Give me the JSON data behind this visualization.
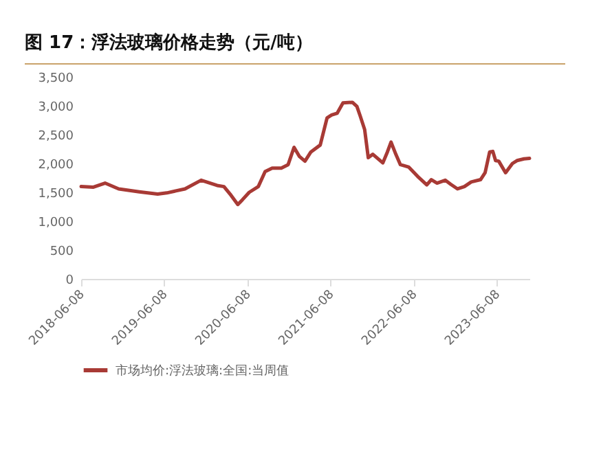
{
  "chart_data": {
    "type": "line",
    "title": "图 17：浮法玻璃价格走势（元/吨）",
    "x": [
      "2018-06-08",
      "2018-08-01",
      "2018-09-21",
      "2018-11-20",
      "2019-02-18",
      "2019-05-10",
      "2019-06-19",
      "2019-09-07",
      "2019-11-17",
      "2020-01-26",
      "2020-02-25",
      "2020-03-27",
      "2020-04-26",
      "2020-05-16",
      "2020-06-15",
      "2020-07-25",
      "2020-08-24",
      "2020-09-24",
      "2020-11-03",
      "2020-12-03",
      "2020-12-29",
      "2021-01-22",
      "2021-02-15",
      "2021-03-13",
      "2021-04-23",
      "2021-05-23",
      "2021-06-12",
      "2021-07-06",
      "2021-08-01",
      "2021-09-11",
      "2021-10-01",
      "2021-10-15",
      "2021-11-04",
      "2021-11-20",
      "2021-12-10",
      "2022-01-23",
      "2022-02-12",
      "2022-02-28",
      "2022-03-21",
      "2022-04-10",
      "2022-05-16",
      "2022-06-29",
      "2022-08-04",
      "2022-08-24",
      "2022-09-18",
      "2022-10-24",
      "2022-11-17",
      "2022-12-17",
      "2023-01-16",
      "2023-02-15",
      "2023-03-28",
      "2023-04-17",
      "2023-05-07",
      "2023-05-21",
      "2023-06-02",
      "2023-06-16",
      "2023-07-16",
      "2023-08-15",
      "2023-09-04",
      "2023-10-05",
      "2023-10-29"
    ],
    "series": [
      {
        "name": "市场均价:浮法玻璃:全国:当周值",
        "color": "#a83a35",
        "values": [
          1600,
          1590,
          1660,
          1560,
          1510,
          1470,
          1490,
          1560,
          1710,
          1620,
          1600,
          1450,
          1290,
          1370,
          1500,
          1600,
          1860,
          1920,
          1920,
          1980,
          2280,
          2120,
          2040,
          2200,
          2320,
          2790,
          2840,
          2870,
          3050,
          3060,
          2990,
          2830,
          2590,
          2100,
          2160,
          2010,
          2200,
          2370,
          2160,
          1980,
          1940,
          1760,
          1630,
          1720,
          1660,
          1710,
          1640,
          1560,
          1600,
          1680,
          1720,
          1840,
          2200,
          2210,
          2050,
          2040,
          1840,
          2000,
          2050,
          2080,
          2090
        ]
      }
    ],
    "xlim": [
      "2018-06-08",
      "2023-10-29"
    ],
    "xticks": [
      "2018-06-08",
      "2019-06-08",
      "2020-06-08",
      "2021-06-08",
      "2022-06-08",
      "2023-06-08"
    ],
    "ylim": [
      0,
      3500
    ],
    "yticks": [
      0,
      500,
      {
        "value": 1000,
        "label": "1,000"
      },
      {
        "value": 1500,
        "label": "1,500"
      },
      {
        "value": 2000,
        "label": "2,000"
      },
      {
        "value": 2500,
        "label": "2,500"
      },
      {
        "value": 3000,
        "label": "3,000"
      },
      {
        "value": 3500,
        "label": "3,500"
      }
    ],
    "grid": false,
    "legend": "bottom",
    "marker": "none",
    "line_style": "solid"
  }
}
